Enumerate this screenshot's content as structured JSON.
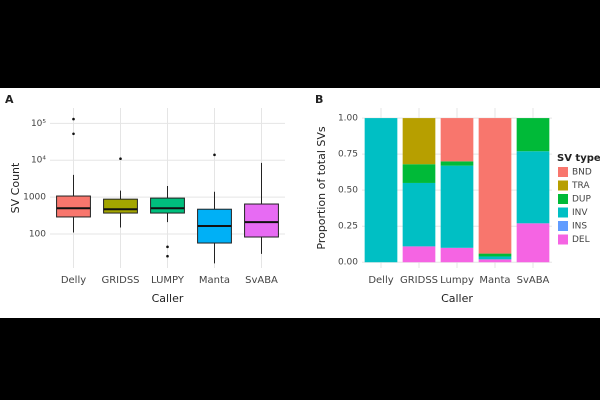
{
  "chart_data": [
    {
      "type": "box",
      "title": "A",
      "x_label": "Caller",
      "y_label": "SV Count",
      "log_y": true,
      "grid": true,
      "categories": [
        "Delly",
        "GRIDSS",
        "LUMPY",
        "Manta",
        "SvABA"
      ],
      "colors": [
        "#F8766D",
        "#A3A500",
        "#00BF7D",
        "#00B0F6",
        "#E76BF3"
      ],
      "boxes": [
        {
          "whislo": 110,
          "q1": 290,
          "med": 500,
          "q3": 1070,
          "whishi": 4000,
          "fliers": [
            52000,
            130000
          ]
        },
        {
          "whislo": 150,
          "q1": 370,
          "med": 470,
          "q3": 880,
          "whishi": 1500,
          "fliers": [
            11000
          ]
        },
        {
          "whislo": 210,
          "q1": 370,
          "med": 500,
          "q3": 940,
          "whishi": 2000,
          "fliers": [
            45,
            25
          ]
        },
        {
          "whislo": 16,
          "q1": 57,
          "med": 165,
          "q3": 470,
          "whishi": 1400,
          "fliers": [
            14000
          ]
        },
        {
          "whislo": 29,
          "q1": 83,
          "med": 210,
          "q3": 650,
          "whishi": 8500,
          "fliers": []
        }
      ],
      "ylim": [
        12,
        260000
      ],
      "yticks": [
        100,
        1000,
        {
          "value": 10000,
          "label": "10⁴"
        },
        {
          "value": 100000,
          "label": "10⁵"
        }
      ]
    },
    {
      "type": "stacked_bar",
      "title": "B",
      "x_label": "Caller",
      "y_label": "Proportion of total SVs",
      "grid": true,
      "legend_title": "SV type",
      "legend": "right",
      "categories": [
        "Delly",
        "GRIDSS",
        "Lumpy",
        "Manta",
        "SvABA"
      ],
      "series": [
        {
          "name": "DEL",
          "color": "#F564E3",
          "values": [
            0,
            0.11,
            0.1,
            0.02,
            0.27
          ]
        },
        {
          "name": "INS",
          "color": "#619CFF",
          "values": [
            0,
            0,
            0,
            0,
            0
          ]
        },
        {
          "name": "INV",
          "color": "#00BFC4",
          "values": [
            1.0,
            0.44,
            0.57,
            0.02,
            0.5
          ]
        },
        {
          "name": "DUP",
          "color": "#00BA38",
          "values": [
            0,
            0.13,
            0.03,
            0.02,
            0.23
          ]
        },
        {
          "name": "TRA",
          "color": "#B79F00",
          "values": [
            0,
            0.32,
            0,
            0,
            0
          ]
        },
        {
          "name": "BND",
          "color": "#F8766D",
          "values": [
            0,
            0,
            0.3,
            0.94,
            0
          ]
        }
      ],
      "ylim": [
        -0.04,
        1.07
      ],
      "yticks": [
        {
          "value": 0,
          "label": "0.00"
        },
        {
          "value": 0.25,
          "label": "0.25"
        },
        {
          "value": 0.5,
          "label": "0.50"
        },
        {
          "value": 0.75,
          "label": "0.75"
        },
        {
          "value": 1,
          "label": "1.00"
        }
      ]
    }
  ]
}
